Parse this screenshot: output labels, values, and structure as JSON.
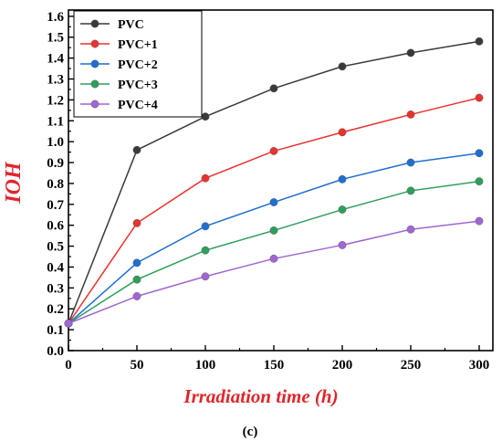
{
  "chart_data": {
    "type": "line",
    "xlabel": "Irradiation time (h)",
    "ylabel": "IOH",
    "caption": "(c)",
    "x": [
      0,
      50,
      100,
      150,
      200,
      250,
      300
    ],
    "xlim": [
      0,
      310
    ],
    "ylim": [
      0.0,
      1.63
    ],
    "xticks": [
      "0",
      "50",
      "100",
      "150",
      "200",
      "250",
      "300"
    ],
    "yticks": [
      "0.0",
      "0.1",
      "0.2",
      "0.3",
      "0.4",
      "0.5",
      "0.6",
      "0.7",
      "0.8",
      "0.9",
      "1.0",
      "1.1",
      "1.2",
      "1.3",
      "1.4",
      "1.5",
      "1.6"
    ],
    "grid": false,
    "legend_position": "top-left",
    "series": [
      {
        "name": "PVC",
        "color": "#3a3a3a",
        "values": [
          0.13,
          0.96,
          1.12,
          1.255,
          1.36,
          1.425,
          1.48
        ]
      },
      {
        "name": "PVC+1",
        "color": "#e8332f",
        "values": [
          0.13,
          0.61,
          0.825,
          0.955,
          1.045,
          1.13,
          1.21
        ]
      },
      {
        "name": "PVC+2",
        "color": "#1f6fd1",
        "values": [
          0.13,
          0.42,
          0.595,
          0.71,
          0.82,
          0.9,
          0.945
        ]
      },
      {
        "name": "PVC+3",
        "color": "#2e9e5b",
        "values": [
          0.13,
          0.34,
          0.48,
          0.575,
          0.675,
          0.765,
          0.81
        ]
      },
      {
        "name": "PVC+4",
        "color": "#a066d3",
        "values": [
          0.13,
          0.26,
          0.355,
          0.44,
          0.505,
          0.58,
          0.62
        ]
      }
    ]
  }
}
